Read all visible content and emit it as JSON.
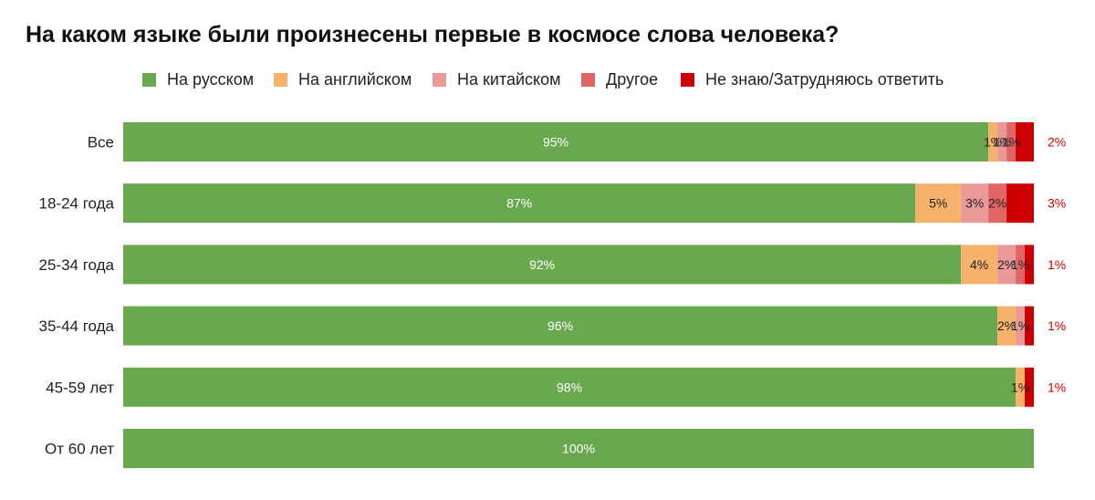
{
  "chart_data": {
    "type": "bar",
    "orientation": "horizontal",
    "stacked": true,
    "title": "На каком языке были произнесены первые в космосе слова человека?",
    "legend_position": "top",
    "categories": [
      "Все",
      "18-24 года",
      "25-34 года",
      "35-44 года",
      "45-59 лет",
      "От 60 лет"
    ],
    "series": [
      {
        "name": "На русском",
        "color": "#6aa84f",
        "values": [
          95,
          87,
          92,
          96,
          98,
          100
        ],
        "labels": [
          "95%",
          "87%",
          "92%",
          "96%",
          "98%",
          "100%"
        ]
      },
      {
        "name": "На английском",
        "color": "#f6b26b",
        "values": [
          1,
          5,
          4,
          2,
          1,
          0
        ],
        "labels": [
          "1%",
          "5%",
          "4%",
          "2%",
          "1%",
          ""
        ]
      },
      {
        "name": "На китайском",
        "color": "#ea9999",
        "values": [
          1,
          3,
          2,
          1,
          0,
          0
        ],
        "labels": [
          "1%",
          "3%",
          "2%",
          "1%",
          "",
          ""
        ]
      },
      {
        "name": "Другое",
        "color": "#e06666",
        "values": [
          1,
          2,
          1,
          0,
          0,
          0
        ],
        "labels": [
          "1%",
          "2%",
          "1%",
          "",
          "",
          ""
        ]
      },
      {
        "name": "Не знаю/Затрудняюсь ответить",
        "color": "#cc0000",
        "values": [
          2,
          3,
          1,
          1,
          1,
          0
        ],
        "labels": [
          "2%",
          "3%",
          "1%",
          "1%",
          "1%",
          ""
        ]
      }
    ],
    "xlim": [
      0,
      100
    ],
    "grid": false
  }
}
